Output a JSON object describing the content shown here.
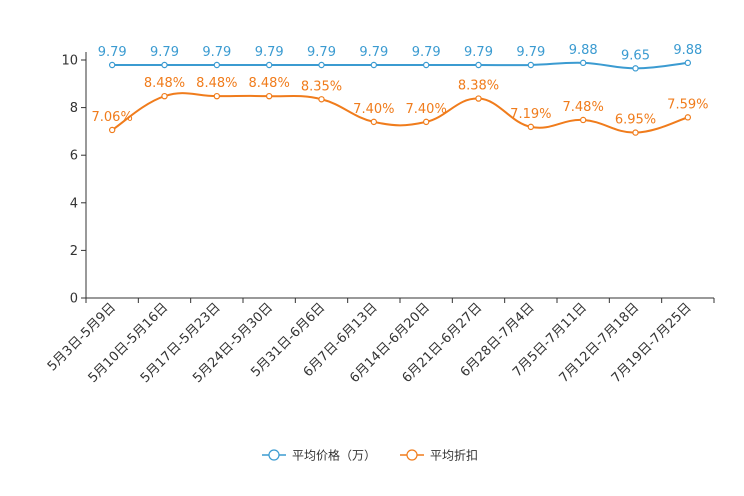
{
  "chart_data": {
    "type": "line",
    "title": "",
    "xlabel": "",
    "ylabel": "",
    "ylim": [
      0,
      10
    ],
    "yticks": [
      0,
      2,
      4,
      6,
      8,
      10
    ],
    "grid": false,
    "legend_position": "bottom-center",
    "categories": [
      "5月3日-5月9日",
      "5月10日-5月16日",
      "5月17日-5月23日",
      "5月24日-5月30日",
      "5月31日-6月6日",
      "6月7日-6月13日",
      "6月14日-6月20日",
      "6月21日-6月27日",
      "6月28日-7月4日",
      "7月5日-7月11日",
      "7月12日-7月18日",
      "7月19日-7月25日"
    ],
    "series": [
      {
        "name": "平均价格（万）",
        "color": "#3b9bd1",
        "values": [
          9.79,
          9.79,
          9.79,
          9.79,
          9.79,
          9.79,
          9.79,
          9.79,
          9.79,
          9.88,
          9.65,
          9.88
        ],
        "labels": [
          "9.79",
          "9.79",
          "9.79",
          "9.79",
          "9.79",
          "9.79",
          "9.79",
          "9.79",
          "9.79",
          "9.88",
          "9.65",
          "9.88"
        ]
      },
      {
        "name": "平均折扣",
        "color": "#f07c1c",
        "values": [
          7.06,
          8.48,
          8.48,
          8.48,
          8.35,
          7.4,
          7.4,
          8.38,
          7.19,
          7.48,
          6.95,
          7.59
        ],
        "labels": [
          "7.06%",
          "8.48%",
          "8.48%",
          "8.48%",
          "8.35%",
          "7.40%",
          "7.40%",
          "8.38%",
          "7.19%",
          "7.48%",
          "6.95%",
          "7.59%"
        ]
      }
    ]
  }
}
